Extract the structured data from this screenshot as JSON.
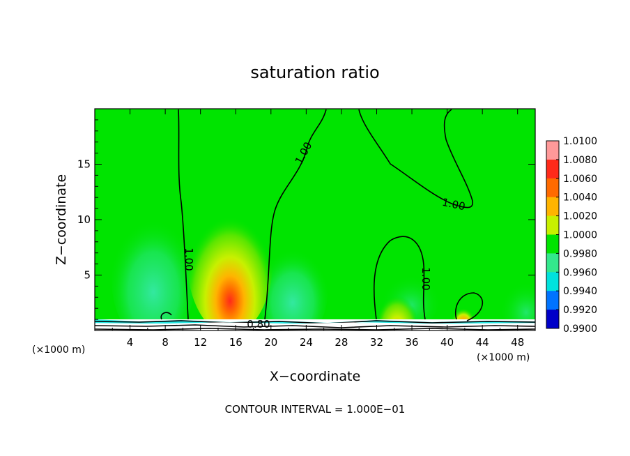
{
  "chart_data": {
    "type": "heatmap",
    "title": "saturation ratio",
    "xlabel": "X−coordinate",
    "ylabel": "Z−coordinate",
    "x_unit_left": "(×1000 m)",
    "x_unit_right": "(×1000 m)",
    "xlim": [
      0,
      50
    ],
    "ylim": [
      0,
      20
    ],
    "x_ticks": [
      4,
      8,
      12,
      16,
      20,
      24,
      28,
      32,
      36,
      40,
      44,
      48
    ],
    "y_ticks": [
      5,
      10,
      15
    ],
    "colorbar": {
      "levels": [
        "1.0100",
        "1.0080",
        "1.0060",
        "1.0040",
        "1.0020",
        "1.0000",
        "0.9980",
        "0.9960",
        "0.9940",
        "0.9920",
        "0.9900"
      ],
      "colors": [
        "#ff9999",
        "#ff2a1a",
        "#ff6a00",
        "#ffb400",
        "#c8f000",
        "#00e400",
        "#33e88c",
        "#00e2dd",
        "#0073ff",
        "#0000c8",
        "#8a00b4"
      ],
      "position": "right"
    },
    "background_value": 1.0,
    "features": [
      {
        "type": "maximum",
        "x": 15.2,
        "z": 1.5,
        "value": 1.0065
      },
      {
        "type": "maximum",
        "x": 34.0,
        "z": 1.5,
        "value": 1.0025
      },
      {
        "type": "maximum",
        "x": 42.0,
        "z": 1.0,
        "value": 1.004
      },
      {
        "type": "minimum",
        "x": 6.5,
        "z": 4.0,
        "value": 0.9975
      },
      {
        "type": "minimum",
        "x": 22.0,
        "z": 3.0,
        "value": 0.998
      }
    ],
    "contour_labels": [
      "1.00",
      "1.00",
      "1.00",
      "1.00",
      "0.80"
    ],
    "footnote": "CONTOUR INTERVAL = 1.000E−01"
  }
}
